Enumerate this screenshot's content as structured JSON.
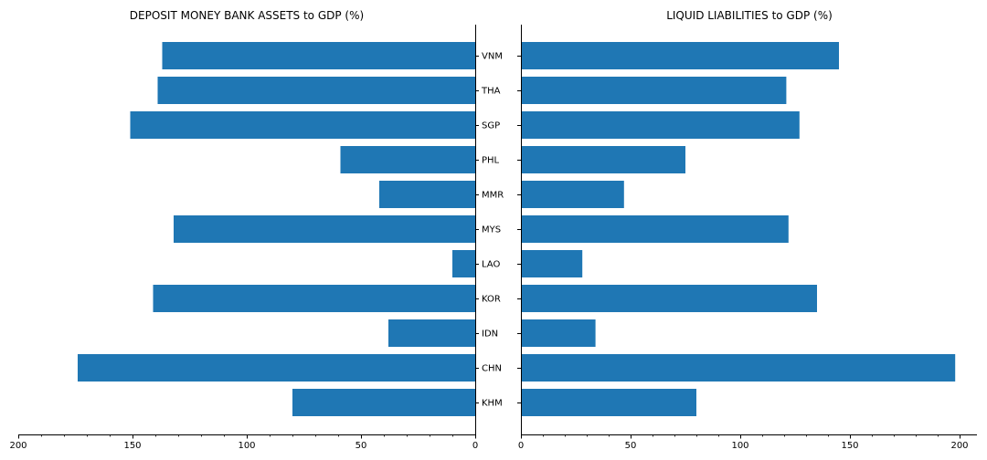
{
  "chart_data": [
    {
      "type": "bar",
      "orientation": "horizontal",
      "direction": "leftward",
      "title": "DEPOSIT MONEY BANK ASSETS to GDP (%)",
      "categories": [
        "KHM",
        "CHN",
        "IDN",
        "KOR",
        "LAO",
        "MYS",
        "MMR",
        "PHL",
        "SGP",
        "THA",
        "VNM"
      ],
      "values": [
        80,
        174,
        38,
        141,
        10,
        132,
        42,
        59,
        151,
        139,
        137
      ],
      "xlim": [
        200,
        0
      ],
      "xticks": [
        "200",
        "150",
        "100",
        "50",
        "0"
      ],
      "xtick_values": [
        200,
        150,
        100,
        50,
        0
      ],
      "bar_color": "#1f77b4",
      "grid": false
    },
    {
      "type": "bar",
      "orientation": "horizontal",
      "direction": "rightward",
      "title": "LIQUID LIABILITIES to GDP (%)",
      "categories": [
        "KHM",
        "CHN",
        "IDN",
        "KOR",
        "LAO",
        "MYS",
        "MMR",
        "PHL",
        "SGP",
        "THA",
        "VNM"
      ],
      "values": [
        80,
        198,
        34,
        135,
        28,
        122,
        47,
        75,
        127,
        121,
        145
      ],
      "xlim": [
        0,
        208
      ],
      "xticks": [
        "0",
        "50",
        "100",
        "150",
        "200"
      ],
      "xtick_values": [
        0,
        50,
        100,
        150,
        200
      ],
      "bar_color": "#1f77b4",
      "grid": false
    }
  ]
}
